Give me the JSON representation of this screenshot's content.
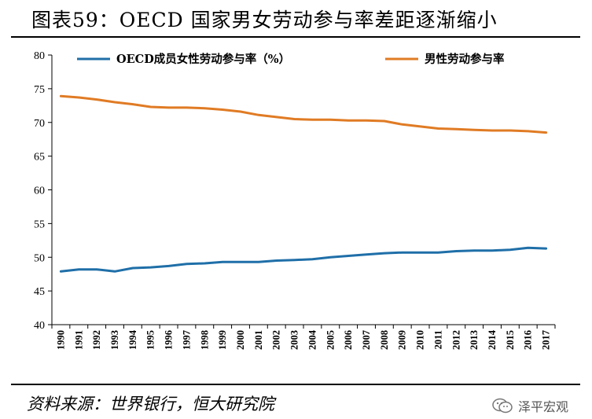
{
  "header": {
    "title": "图表59：OECD 国家男女劳动参与率差距逐渐缩小"
  },
  "footer": {
    "source": "资料来源：世界银行，恒大研究院",
    "watermark": "泽平宏观"
  },
  "watermark_icon": "wechat-icon",
  "chart_data": {
    "type": "line",
    "title": "",
    "xlabel": "",
    "ylabel": "",
    "ylim": [
      40,
      80
    ],
    "yticks": [
      40,
      45,
      50,
      55,
      60,
      65,
      70,
      75,
      80
    ],
    "grid": false,
    "legend_position": "top",
    "x": [
      "1990",
      "1991",
      "1992",
      "1993",
      "1994",
      "1995",
      "1996",
      "1997",
      "1998",
      "1999",
      "2000",
      "2001",
      "2002",
      "2003",
      "2004",
      "2005",
      "2006",
      "2007",
      "2008",
      "2009",
      "2010",
      "2011",
      "2012",
      "2013",
      "2014",
      "2015",
      "2016",
      "2017"
    ],
    "series": [
      {
        "name": "OECD成员女性劳动参与率（%）",
        "color": "#1f6fa8",
        "values": [
          47.9,
          48.2,
          48.2,
          47.9,
          48.4,
          48.5,
          48.7,
          49.0,
          49.1,
          49.3,
          49.3,
          49.3,
          49.5,
          49.6,
          49.7,
          50.0,
          50.2,
          50.4,
          50.6,
          50.7,
          50.7,
          50.7,
          50.9,
          51.0,
          51.0,
          51.1,
          51.4,
          51.3
        ]
      },
      {
        "name": "男性劳动参与率",
        "color": "#e07b24",
        "values": [
          73.9,
          73.7,
          73.4,
          73.0,
          72.7,
          72.3,
          72.2,
          72.2,
          72.1,
          71.9,
          71.6,
          71.1,
          70.8,
          70.5,
          70.4,
          70.4,
          70.3,
          70.3,
          70.2,
          69.7,
          69.4,
          69.1,
          69.0,
          68.9,
          68.8,
          68.8,
          68.7,
          68.5
        ]
      }
    ]
  }
}
